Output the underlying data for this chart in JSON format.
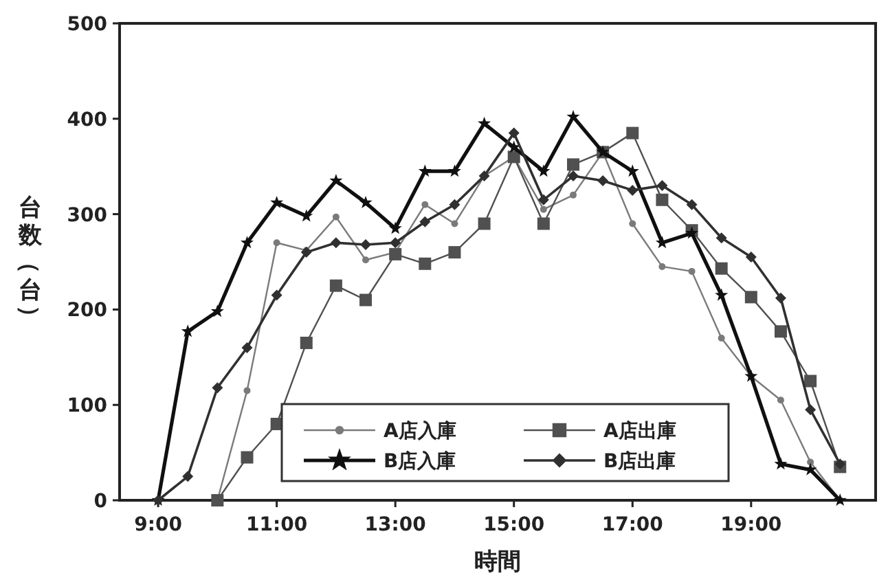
{
  "chart_data": {
    "type": "line",
    "xlabel": "時間",
    "ylabel": "台数（台）",
    "xlim": [
      8.35,
      21.1
    ],
    "ylim": [
      0,
      500
    ],
    "xticks": [
      {
        "value": 9,
        "label": "9:00"
      },
      {
        "value": 11,
        "label": "11:00"
      },
      {
        "value": 13,
        "label": "13:00"
      },
      {
        "value": 15,
        "label": "15:00"
      },
      {
        "value": 17,
        "label": "17:00"
      },
      {
        "value": 19,
        "label": "19:00"
      }
    ],
    "yticks": [
      0,
      100,
      200,
      300,
      400,
      500
    ],
    "grid": false,
    "legend": "bottom",
    "series": [
      {
        "name": "A店入庫",
        "color": "#7a7a7a",
        "marker": "circle",
        "x": [
          10,
          10.5,
          11,
          11.5,
          12,
          12.5,
          13,
          13.5,
          14,
          14.5,
          15,
          15.5,
          16,
          16.5,
          17,
          17.5,
          18,
          18.5,
          19,
          19.5,
          20,
          20.5
        ],
        "values": [
          0,
          115,
          270,
          262,
          297,
          252,
          260,
          310,
          290,
          340,
          360,
          305,
          320,
          365,
          290,
          245,
          240,
          170,
          130,
          105,
          40,
          0
        ]
      },
      {
        "name": "A店出庫",
        "color": "#505050",
        "marker": "square",
        "x": [
          10,
          10.5,
          11,
          11.5,
          12,
          12.5,
          13,
          13.5,
          14,
          14.5,
          15,
          15.5,
          16,
          16.5,
          17,
          17.5,
          18,
          18.5,
          19,
          19.5,
          20,
          20.5
        ],
        "values": [
          0,
          45,
          80,
          165,
          225,
          210,
          258,
          248,
          260,
          290,
          360,
          290,
          352,
          365,
          385,
          315,
          283,
          243,
          213,
          177,
          125,
          35
        ]
      },
      {
        "name": "B店入庫",
        "color": "#101010",
        "marker": "star",
        "x": [
          9,
          9.5,
          10,
          10.5,
          11,
          11.5,
          12,
          12.5,
          13,
          13.5,
          14,
          14.5,
          15,
          15.5,
          16,
          16.5,
          17,
          17.5,
          18,
          18.5,
          19,
          19.5,
          20,
          20.5
        ],
        "values": [
          0,
          177,
          198,
          270,
          312,
          298,
          335,
          312,
          285,
          345,
          345,
          395,
          370,
          345,
          402,
          365,
          345,
          270,
          280,
          215,
          130,
          38,
          32,
          0
        ]
      },
      {
        "name": "B店出庫",
        "color": "#303030",
        "marker": "diamond",
        "x": [
          9,
          9.5,
          10,
          10.5,
          11,
          11.5,
          12,
          12.5,
          13,
          13.5,
          14,
          14.5,
          15,
          15.5,
          16,
          16.5,
          17,
          17.5,
          18,
          18.5,
          19,
          19.5,
          20,
          20.5
        ],
        "values": [
          0,
          25,
          118,
          160,
          215,
          260,
          270,
          268,
          270,
          292,
          310,
          340,
          385,
          315,
          340,
          335,
          325,
          330,
          310,
          275,
          255,
          212,
          95,
          38
        ]
      }
    ]
  }
}
